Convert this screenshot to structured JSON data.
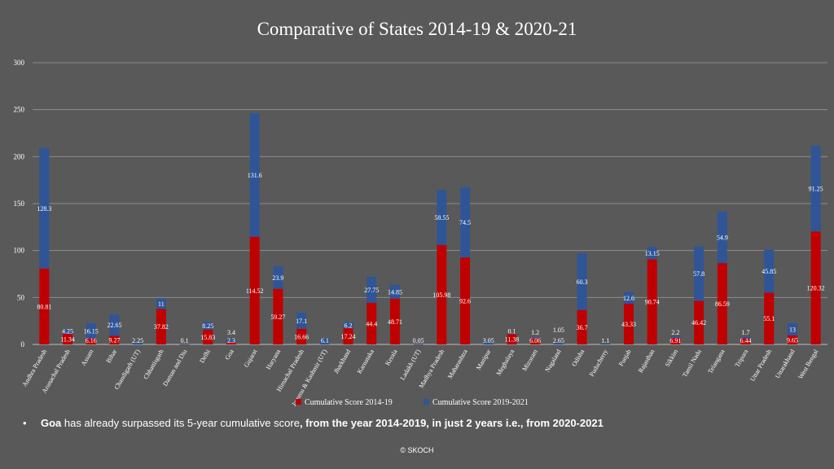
{
  "colors": {
    "background": "#595959",
    "series_2014": "#c00000",
    "series_2019": "#2f5597"
  },
  "note": {
    "bullet": "•",
    "bold_state": "Goa",
    "text_1": " has already surpassed its 5-year cumulative score",
    "bold_tail": ", from the year 2014-2019,  in just 2 years i.e., from 2020-2021"
  },
  "footer": "© SKOCH",
  "chart_data": {
    "type": "bar",
    "stacked": true,
    "title": "Comparative of States 2014-19 & 2020-21",
    "xlabel": "",
    "ylabel": "",
    "ylim": [
      0,
      300
    ],
    "yticks": [
      0,
      50,
      100,
      150,
      200,
      250,
      300
    ],
    "grid": true,
    "legend_position": "bottom",
    "categories": [
      "Andhra Pradesh",
      "Arunachal Pradesh",
      "Assam",
      "Bihar",
      "Chandigarh (UT)",
      "Chhattisgarh",
      "Daman and Diu",
      "Delhi",
      "Goa",
      "Gujarat",
      "Haryana",
      "Himachal Pradesh",
      "Jammu & Kashmir (UT)",
      "Jharkhand",
      "Karnataka",
      "Kerala",
      "Ladakh (UT)",
      "Madhya Pradesh",
      "Maharashtra",
      "Manipur",
      "Meghalaya",
      "Mizoram",
      "Nagaland",
      "Odisha",
      "Puducherry",
      "Punjab",
      "Rajasthan",
      "Sikkim",
      "Tamil Nadu",
      "Telangana",
      "Tripura",
      "Uttar Pradesh",
      "Uttarakhand",
      "West Bengal"
    ],
    "series": [
      {
        "name": "Cumulative Score 2014-19",
        "color": "#c00000",
        "values": [
          80.81,
          11.34,
          6.16,
          9.27,
          null,
          37.82,
          null,
          15.83,
          2.3,
          114.52,
          59.27,
          16.66,
          null,
          17.24,
          44.4,
          48.71,
          null,
          105.98,
          92.6,
          null,
          11.38,
          6.06,
          null,
          36.7,
          null,
          43.33,
          90.74,
          6.91,
          46.42,
          86.59,
          6.44,
          55.1,
          9.65,
          120.32
        ]
      },
      {
        "name": "Cumulative Score 2019-2021",
        "color": "#2f5597",
        "values": [
          128.3,
          4.25,
          16.15,
          22.65,
          2.25,
          11,
          0.1,
          8.25,
          3.4,
          131.6,
          23.9,
          17.1,
          6.1,
          6.2,
          27.75,
          14.85,
          0.05,
          58.55,
          74.5,
          3.05,
          0.1,
          1.2,
          2.65,
          60.3,
          1.1,
          12.6,
          13.15,
          2.2,
          57.8,
          54.9,
          1.7,
          45.85,
          13,
          91.25
        ]
      }
    ],
    "extra_labels": [
      {
        "category": "Nagaland",
        "text": "1.05"
      }
    ]
  }
}
